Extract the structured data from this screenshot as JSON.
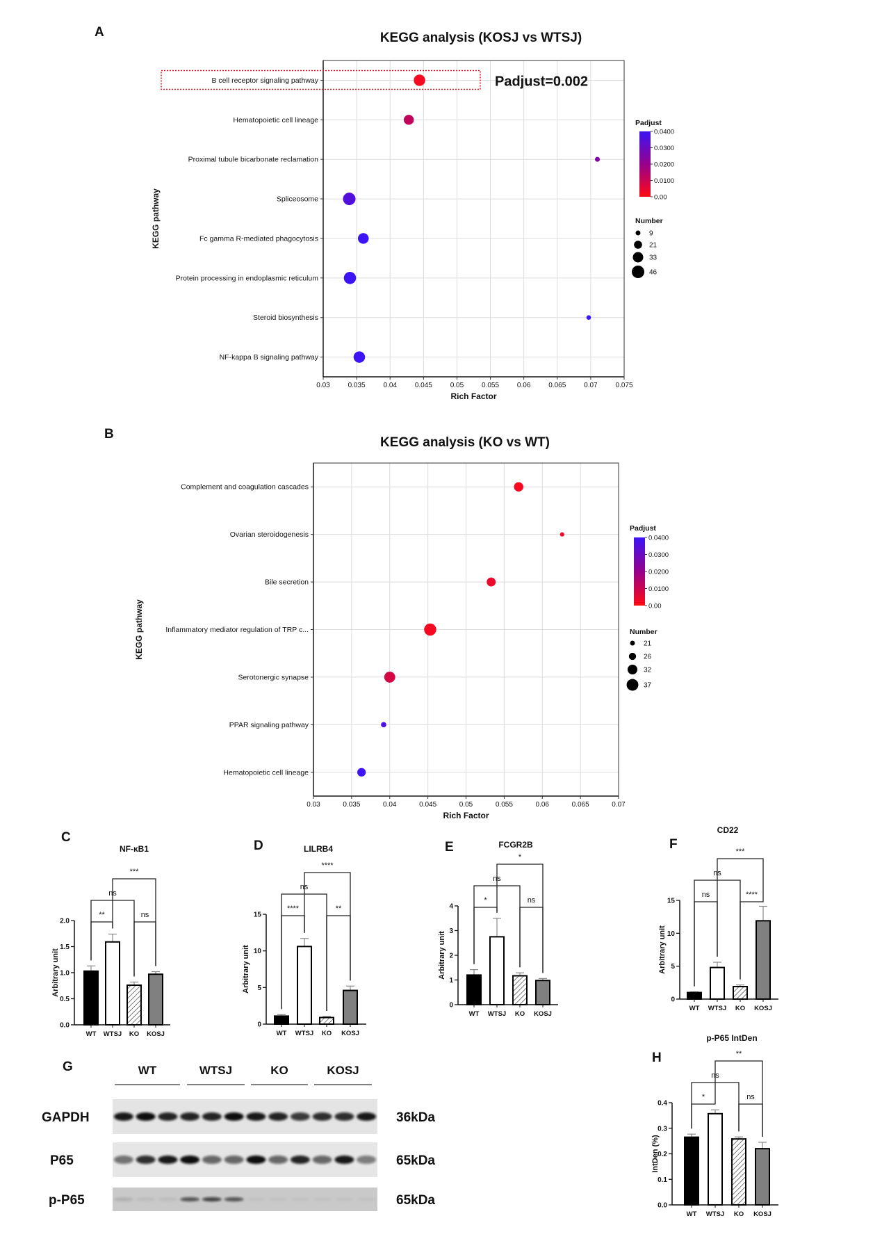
{
  "panel_letters": {
    "A": "A",
    "B": "B",
    "C": "C",
    "D": "D",
    "E": "E",
    "F": "F",
    "G": "G",
    "H": "H"
  },
  "chart_data": [
    {
      "id": "A",
      "type": "scatter",
      "title": "KEGG analysis (KOSJ vs WTSJ)",
      "xlabel": "Rich Factor",
      "ylabel": "KEGG pathway",
      "xlim": [
        0.03,
        0.075
      ],
      "xticks": [
        "0.03",
        "0.035",
        "0.04",
        "0.045",
        "0.05",
        "0.055",
        "0.06",
        "0.065",
        "0.07",
        "0.075"
      ],
      "grid": true,
      "points": [
        {
          "pathway": "B cell receptor signaling pathway",
          "rich_factor": 0.0444,
          "padjust": 0.002,
          "number": 39
        },
        {
          "pathway": "Hematopoietic cell lineage",
          "rich_factor": 0.0428,
          "padjust": 0.012,
          "number": 31
        },
        {
          "pathway": "Proximal tubule bicarbonate reclamation",
          "rich_factor": 0.071,
          "padjust": 0.025,
          "number": 9
        },
        {
          "pathway": "Spliceosome",
          "rich_factor": 0.0339,
          "padjust": 0.035,
          "number": 46
        },
        {
          "pathway": "Fc gamma R-mediated phagocytosis",
          "rich_factor": 0.036,
          "padjust": 0.04,
          "number": 35
        },
        {
          "pathway": "Protein processing in endoplasmic reticulum",
          "rich_factor": 0.034,
          "padjust": 0.04,
          "number": 44
        },
        {
          "pathway": "Steroid biosynthesis",
          "rich_factor": 0.0697,
          "padjust": 0.041,
          "number": 8
        },
        {
          "pathway": "NF-kappa B signaling pathway",
          "rich_factor": 0.0354,
          "padjust": 0.042,
          "number": 39
        }
      ],
      "highlight": {
        "pathway_index": 0,
        "annotation": "Padjust=0.002",
        "color": "#e8141b"
      },
      "legend": {
        "placement": "right",
        "color_title": "Padjust",
        "color_ticks": [
          "0.0400",
          "0.0300",
          "0.0200",
          "0.0100",
          "0.00"
        ],
        "color_low": "#ff0a14",
        "color_high": "#3c14f5",
        "size_title": "Number",
        "size_values": [
          "9",
          "21",
          "33",
          "46"
        ]
      }
    },
    {
      "id": "B",
      "type": "scatter",
      "title": "KEGG analysis (KO vs WT)",
      "xlabel": "Rich Factor",
      "ylabel": "KEGG pathway",
      "xlim": [
        0.03,
        0.07
      ],
      "xticks": [
        "0.03",
        "0.035",
        "0.04",
        "0.045",
        "0.05",
        "0.055",
        "0.06",
        "0.065",
        "0.07"
      ],
      "grid": true,
      "points": [
        {
          "pathway": "Complement and coagulation cascades",
          "rich_factor": 0.0569,
          "padjust": 0.002,
          "number": 31
        },
        {
          "pathway": "Ovarian steroidogenesis",
          "rich_factor": 0.0626,
          "padjust": 0.003,
          "number": 20
        },
        {
          "pathway": "Bile secretion",
          "rich_factor": 0.0533,
          "padjust": 0.004,
          "number": 30
        },
        {
          "pathway": "Inflammatory mediator regulation of TRP c...",
          "rich_factor": 0.0453,
          "padjust": 0.002,
          "number": 38
        },
        {
          "pathway": "Serotonergic synapse",
          "rich_factor": 0.04,
          "padjust": 0.008,
          "number": 35
        },
        {
          "pathway": "PPAR signaling pathway",
          "rich_factor": 0.0392,
          "padjust": 0.036,
          "number": 22
        },
        {
          "pathway": "Hematopoietic cell lineage",
          "rich_factor": 0.0363,
          "padjust": 0.04,
          "number": 29
        }
      ],
      "legend": {
        "placement": "right",
        "color_title": "Padjust",
        "color_ticks": [
          "0.0400",
          "0.0300",
          "0.0200",
          "0.0100",
          "0.00"
        ],
        "color_low": "#ff0a14",
        "color_high": "#3c14f5",
        "size_title": "Number",
        "size_values": [
          "21",
          "26",
          "32",
          "37"
        ]
      }
    },
    {
      "id": "C",
      "type": "bar",
      "title": "NF-κB1",
      "ylabel": "Arbitrary unit",
      "categories": [
        "WT",
        "WTSJ",
        "KO",
        "KOSJ"
      ],
      "values": [
        1.03,
        1.59,
        0.76,
        0.97
      ],
      "errors": [
        0.1,
        0.15,
        0.06,
        0.05
      ],
      "ylim": [
        0,
        2.0
      ],
      "yticks": [
        "0.0",
        "0.5",
        "1.0",
        "1.5",
        "2.0"
      ],
      "comparisons": [
        {
          "pair": [
            0,
            1
          ],
          "label": "**"
        },
        {
          "pair": [
            2,
            3
          ],
          "label": "ns"
        },
        {
          "pair": [
            0,
            2
          ],
          "label": "ns"
        },
        {
          "pair": [
            1,
            3
          ],
          "label": "***"
        }
      ]
    },
    {
      "id": "D",
      "type": "bar",
      "title": "LILRB4",
      "ylabel": "Arbitrary unit",
      "categories": [
        "WT",
        "WTSJ",
        "KO",
        "KOSJ"
      ],
      "values": [
        1.1,
        10.6,
        0.9,
        4.6
      ],
      "errors": [
        0.2,
        1.1,
        0.15,
        0.6
      ],
      "ylim": [
        0,
        15
      ],
      "yticks": [
        "0",
        "5",
        "10",
        "15"
      ],
      "comparisons": [
        {
          "pair": [
            0,
            1
          ],
          "label": "****"
        },
        {
          "pair": [
            2,
            3
          ],
          "label": "**"
        },
        {
          "pair": [
            0,
            2
          ],
          "label": "ns"
        },
        {
          "pair": [
            1,
            3
          ],
          "label": "****"
        }
      ]
    },
    {
      "id": "E",
      "type": "bar",
      "title": "FCGR2B",
      "ylabel": "Arbitrary unit",
      "categories": [
        "WT",
        "WTSJ",
        "KO",
        "KOSJ"
      ],
      "values": [
        1.2,
        2.75,
        1.17,
        0.98
      ],
      "errors": [
        0.22,
        0.75,
        0.12,
        0.08
      ],
      "ylim": [
        0,
        4
      ],
      "yticks": [
        "0",
        "1",
        "2",
        "3",
        "4"
      ],
      "comparisons": [
        {
          "pair": [
            0,
            1
          ],
          "label": "*"
        },
        {
          "pair": [
            2,
            3
          ],
          "label": "ns"
        },
        {
          "pair": [
            0,
            2
          ],
          "label": "ns"
        },
        {
          "pair": [
            1,
            3
          ],
          "label": "*"
        }
      ]
    },
    {
      "id": "F",
      "type": "bar",
      "title": "CD22",
      "ylabel": "Arbitrary unit",
      "categories": [
        "WT",
        "WTSJ",
        "KO",
        "KOSJ"
      ],
      "values": [
        1.0,
        4.8,
        1.9,
        11.9
      ],
      "errors": [
        0.1,
        0.8,
        0.25,
        2.2
      ],
      "ylim": [
        0,
        15
      ],
      "yticks": [
        "0",
        "5",
        "10",
        "15"
      ],
      "comparisons": [
        {
          "pair": [
            0,
            1
          ],
          "label": "ns"
        },
        {
          "pair": [
            2,
            3
          ],
          "label": "****"
        },
        {
          "pair": [
            0,
            2
          ],
          "label": "ns"
        },
        {
          "pair": [
            1,
            3
          ],
          "label": "***"
        }
      ]
    },
    {
      "id": "H",
      "type": "bar",
      "title": "p-P65 IntDen",
      "ylabel": "IntDen (%)",
      "categories": [
        "WT",
        "WTSJ",
        "KO",
        "KOSJ"
      ],
      "values": [
        0.265,
        0.357,
        0.258,
        0.22
      ],
      "errors": [
        0.012,
        0.015,
        0.008,
        0.025
      ],
      "ylim": [
        0,
        0.4
      ],
      "yticks": [
        "0.0",
        "0.1",
        "0.2",
        "0.3",
        "0.4"
      ],
      "comparisons": [
        {
          "pair": [
            0,
            1
          ],
          "label": "*"
        },
        {
          "pair": [
            2,
            3
          ],
          "label": "ns"
        },
        {
          "pair": [
            0,
            2
          ],
          "label": "ns"
        },
        {
          "pair": [
            1,
            3
          ],
          "label": "**"
        }
      ]
    }
  ],
  "bar_fills": {
    "WT": "#000000",
    "WTSJ": "#ffffff",
    "KO": "hatched",
    "KOSJ": "#808080"
  },
  "western_blot": {
    "groups": [
      "WT",
      "WTSJ",
      "KO",
      "KOSJ"
    ],
    "rows": [
      {
        "protein": "GAPDH",
        "size": "36kDa",
        "band_intensity": [
          0.95,
          1,
          0.9,
          0.9,
          0.9,
          1,
          0.95,
          0.9,
          0.8,
          0.85,
          0.85,
          0.95
        ]
      },
      {
        "protein": "P65",
        "size": "65kDa",
        "band_intensity": [
          0.55,
          0.85,
          0.95,
          1,
          0.6,
          0.6,
          1,
          0.6,
          0.9,
          0.6,
          0.95,
          0.5
        ]
      },
      {
        "protein": "p-P65",
        "size": "65kDa",
        "band_intensity": [
          0.12,
          0.06,
          0.06,
          0.65,
          0.75,
          0.65,
          0.03,
          0.03,
          0.03,
          0.03,
          0.03,
          0.03
        ]
      }
    ]
  }
}
